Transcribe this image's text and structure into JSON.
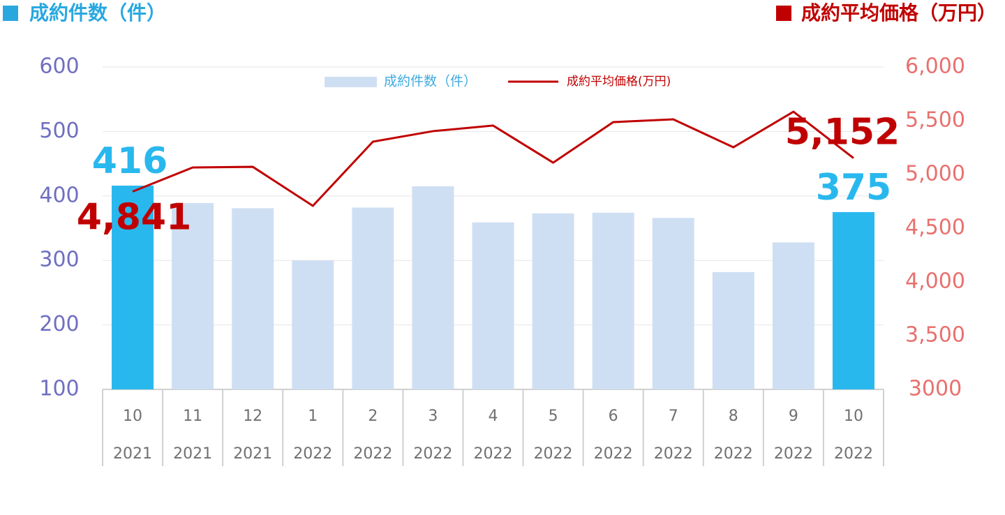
{
  "chart_data": {
    "type": "bar_line",
    "left_axis_title": "成約件数（件）",
    "right_axis_title": "成約平均価格（万円）",
    "categories": [
      [
        "10",
        "2021"
      ],
      [
        "11",
        "2021"
      ],
      [
        "12",
        "2021"
      ],
      [
        "1",
        "2022"
      ],
      [
        "2",
        "2022"
      ],
      [
        "3",
        "2022"
      ],
      [
        "4",
        "2022"
      ],
      [
        "5",
        "2022"
      ],
      [
        "6",
        "2022"
      ],
      [
        "7",
        "2022"
      ],
      [
        "8",
        "2022"
      ],
      [
        "9",
        "2022"
      ],
      [
        "10",
        "2022"
      ]
    ],
    "series": [
      {
        "name": "成約件数（件）",
        "type": "bar",
        "color": "#cfdff3",
        "highlight_color": "#29b8ee",
        "values": [
          416,
          389,
          381,
          300,
          382,
          415,
          359,
          373,
          374,
          366,
          282,
          328,
          375
        ],
        "value_labels": [
          "416",
          null,
          null,
          null,
          null,
          null,
          null,
          null,
          null,
          null,
          null,
          null,
          "375"
        ]
      },
      {
        "name": "成約平均価格(万円)",
        "type": "line",
        "axis": "y2",
        "color": "#c00000",
        "values": [
          4841,
          5065,
          5071,
          4708,
          5305,
          5403,
          5455,
          5110,
          5487,
          5513,
          5253,
          5584,
          5152
        ],
        "value_labels": [
          "4,841",
          null,
          null,
          null,
          null,
          null,
          null,
          null,
          null,
          null,
          null,
          null,
          "5,152"
        ]
      }
    ],
    "ylim": [
      100,
      600
    ],
    "yticks": [
      100,
      200,
      300,
      400,
      500,
      600
    ],
    "y2lim": [
      3000,
      6000
    ],
    "y2ticks": [
      3000,
      {
        "value": 3500,
        "label": "3,500"
      },
      {
        "value": 4000,
        "label": "4,000"
      },
      {
        "value": 4500,
        "label": "4,500"
      },
      {
        "value": 5000,
        "label": "5,000"
      },
      {
        "value": 5500,
        "label": "5,500"
      },
      {
        "value": 6000,
        "label": "6,000"
      }
    ],
    "grid": true
  }
}
